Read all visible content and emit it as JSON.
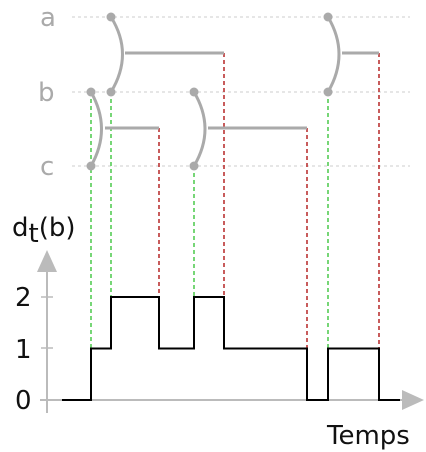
{
  "lanes": [
    {
      "name": "a",
      "label": "a"
    },
    {
      "name": "b",
      "label": "b"
    },
    {
      "name": "c",
      "label": "c"
    }
  ],
  "y_axis": {
    "label_main": "d",
    "label_sub": "t",
    "label_arg": "(b)",
    "ticks": [
      "0",
      "1",
      "2"
    ]
  },
  "x_axis": {
    "label": "Temps"
  },
  "links": [
    {
      "from": "b",
      "to": "c",
      "start": 91,
      "end": 159
    },
    {
      "from": "a",
      "to": "b",
      "start": 111,
      "end": 224
    },
    {
      "from": "b",
      "to": "c",
      "start": 194,
      "end": 307
    },
    {
      "from": "a",
      "to": "b",
      "start": 328,
      "end": 379
    }
  ],
  "degree_steps": [
    {
      "x": 62,
      "y": 0
    },
    {
      "x": 91,
      "y": 1
    },
    {
      "x": 111,
      "y": 2
    },
    {
      "x": 159,
      "y": 1
    },
    {
      "x": 194,
      "y": 2
    },
    {
      "x": 224,
      "y": 1
    },
    {
      "x": 307,
      "y": 0
    },
    {
      "x": 328,
      "y": 1
    },
    {
      "x": 379,
      "y": 0
    },
    {
      "x": 400,
      "y": 0
    }
  ]
}
